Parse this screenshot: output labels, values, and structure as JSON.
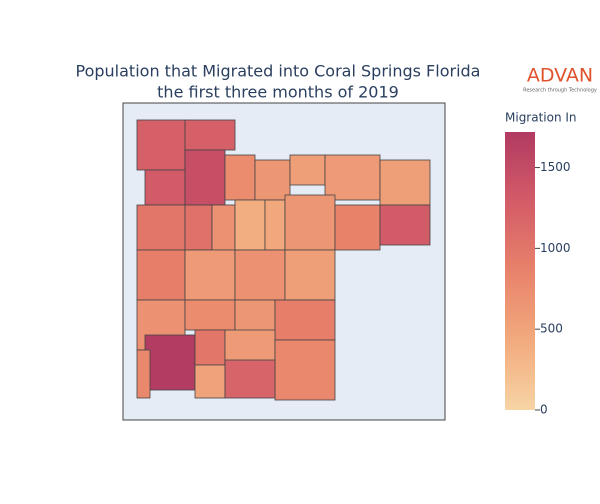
{
  "chart_data": {
    "type": "choropleth",
    "title": "Population that Migrated into Coral Springs Florida",
    "subtitle": "the first three months of 2019",
    "logo": "ADVAN",
    "logo_tagline": "Research through Technology",
    "colorbar_title": "Migration In",
    "colorbar_lim": [
      0,
      1720
    ],
    "colorbar_ticks": [
      0,
      500,
      1000,
      1500
    ],
    "colorscale": [
      "#f7d4a4",
      "#f2aa7e",
      "#e8826a",
      "#d35c68",
      "#b13a62"
    ],
    "values": [
      1250,
      1250,
      1300,
      1450,
      750,
      650,
      550,
      600,
      550,
      1000,
      1050,
      700,
      400,
      450,
      650,
      850,
      1300,
      900,
      600,
      700,
      550,
      700,
      750,
      650,
      900,
      1700,
      1000,
      600,
      800,
      500,
      1200,
      800
    ]
  }
}
